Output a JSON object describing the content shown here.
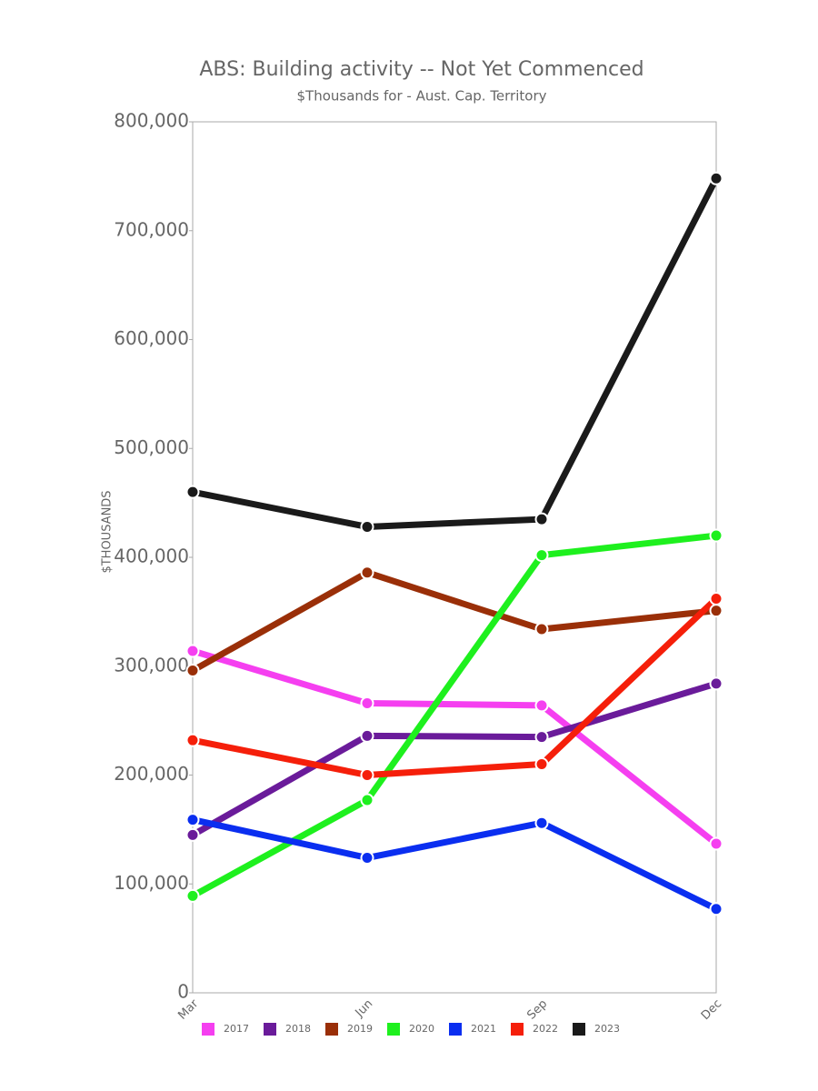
{
  "chart_data": {
    "type": "line",
    "title": "ABS: Building activity -- Not Yet Commenced",
    "subtitle": "$Thousands for - Aust. Cap. Territory",
    "y_label": "$THOUSANDS",
    "categories": [
      "Mar",
      "Jun",
      "Sep",
      "Dec"
    ],
    "series": [
      {
        "name": "2017",
        "color": "#f53ff0",
        "values": [
          314000,
          266000,
          264000,
          137000
        ]
      },
      {
        "name": "2018",
        "color": "#6a1b9a",
        "values": [
          145000,
          236000,
          235000,
          284000
        ]
      },
      {
        "name": "2019",
        "color": "#9a2f08",
        "values": [
          296000,
          386000,
          334000,
          351000
        ]
      },
      {
        "name": "2020",
        "color": "#1ef01e",
        "values": [
          89000,
          177000,
          402000,
          420000
        ]
      },
      {
        "name": "2021",
        "color": "#0a2ef0",
        "values": [
          159000,
          124000,
          156000,
          77000
        ]
      },
      {
        "name": "2022",
        "color": "#f51f0a",
        "values": [
          232000,
          200000,
          210000,
          362000
        ]
      },
      {
        "name": "2023",
        "color": "#1a1a1a",
        "values": [
          460000,
          428000,
          435000,
          748000
        ]
      }
    ],
    "ylim": [
      0,
      800000
    ],
    "yticks": [
      0,
      {
        "value": 100000,
        "label": "100,000"
      },
      {
        "value": 200000,
        "label": "200,000"
      },
      {
        "value": 300000,
        "label": "300,000"
      },
      {
        "value": 400000,
        "label": "400,000"
      },
      {
        "value": 500000,
        "label": "500,000"
      },
      {
        "value": 600000,
        "label": "600,000"
      },
      {
        "value": 700000,
        "label": "700,000"
      },
      {
        "value": 800000,
        "label": "800,000"
      }
    ],
    "grid": false,
    "legend": "bottom"
  }
}
